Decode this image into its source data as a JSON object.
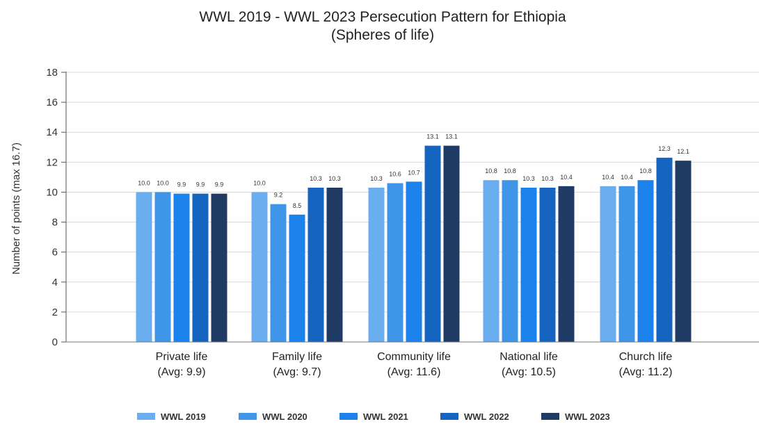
{
  "chart_data": {
    "type": "bar",
    "title": "WWL 2019 - WWL 2023 Persecution Pattern for Ethiopia",
    "subtitle": "(Spheres of life)",
    "xlabel": "",
    "ylabel": "Number of points (max 16.7)",
    "ylim": [
      0,
      18
    ],
    "yticks": [
      "0",
      "2",
      "4",
      "6",
      "8",
      "10",
      "12",
      "14",
      "16",
      "18"
    ],
    "grid": true,
    "legend_position": "bottom",
    "categories": [
      {
        "name": "Private life",
        "avg": "(Avg: 9.9)"
      },
      {
        "name": "Family life",
        "avg": "(Avg: 9.7)"
      },
      {
        "name": "Community life",
        "avg": "(Avg: 11.6)"
      },
      {
        "name": "National life",
        "avg": "(Avg: 10.5)"
      },
      {
        "name": "Church life",
        "avg": "(Avg: 11.2)"
      }
    ],
    "series": [
      {
        "name": "WWL 2019",
        "color": "#6aaef0",
        "values": [
          10.0,
          10.0,
          10.3,
          10.8,
          10.4
        ],
        "labels": [
          "10.0",
          "10.0",
          "10.3",
          "10.8",
          "10.4"
        ]
      },
      {
        "name": "WWL 2020",
        "color": "#3f95e8",
        "values": [
          10.0,
          9.2,
          10.6,
          10.8,
          10.4
        ],
        "labels": [
          "10.0",
          "9.2",
          "10.6",
          "10.8",
          "10.4"
        ]
      },
      {
        "name": "WWL 2021",
        "color": "#1a82ea",
        "values": [
          9.9,
          8.5,
          10.7,
          10.3,
          10.8
        ],
        "labels": [
          "9.9",
          "8.5",
          "10.7",
          "10.3",
          "10.8"
        ]
      },
      {
        "name": "WWL 2022",
        "color": "#1565c0",
        "values": [
          9.9,
          10.3,
          13.1,
          10.3,
          12.3
        ],
        "labels": [
          "9.9",
          "10.3",
          "13.1",
          "10.3",
          "12.3"
        ]
      },
      {
        "name": "WWL 2023",
        "color": "#1f3a63",
        "values": [
          9.9,
          10.3,
          13.1,
          10.4,
          12.1
        ],
        "labels": [
          "9.9",
          "10.3",
          "13.1",
          "10.4",
          "12.1"
        ]
      }
    ]
  }
}
